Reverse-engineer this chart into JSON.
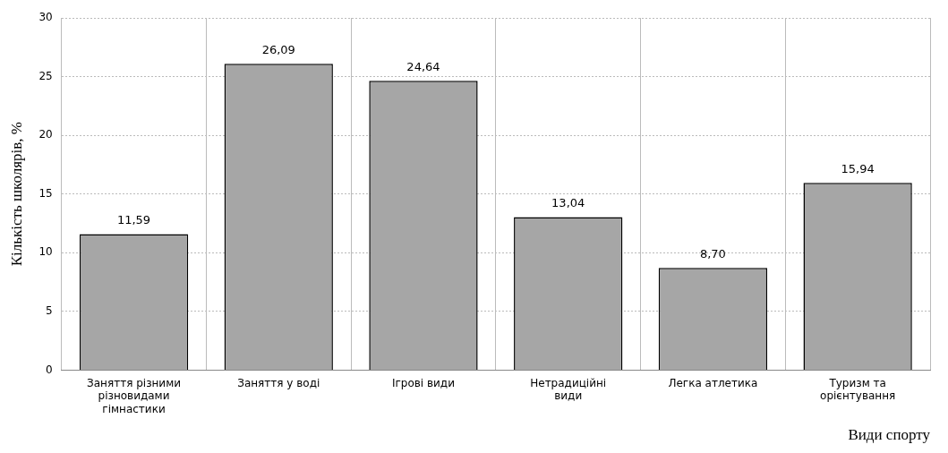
{
  "chart_data": {
    "type": "bar",
    "xlabel": "Види спорту",
    "ylabel": "Кількість школярів, %",
    "categories": [
      "Заняття різними різновидами гімнастики",
      "Заняття у воді",
      "Ігрові види",
      "Нетрадиційні види",
      "Легка атлетика",
      "Туризм та орієнтування"
    ],
    "values": [
      11.59,
      26.09,
      24.64,
      13.04,
      8.7,
      15.94
    ],
    "value_labels": [
      "11,59",
      "26,09",
      "24,64",
      "13,04",
      "8,70",
      "15,94"
    ],
    "color": "#a6a6a6",
    "ylim": [
      0,
      30
    ],
    "yticks": [
      0,
      5,
      10,
      15,
      20,
      25,
      30
    ],
    "grid": true
  }
}
